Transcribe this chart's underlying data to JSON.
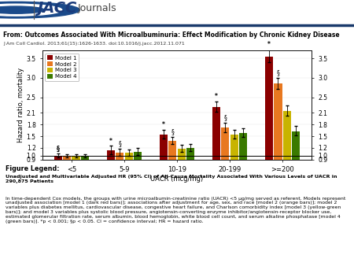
{
  "categories": [
    "<5",
    "5-9",
    "10-19",
    "20-199",
    ">=200"
  ],
  "models": [
    "Model 1",
    "Model 2",
    "Model 3",
    "Model 4"
  ],
  "colors": [
    "#8B0000",
    "#E87820",
    "#C8B400",
    "#3A7A00"
  ],
  "values": [
    [
      1.0,
      1.13,
      1.55,
      2.25,
      3.55
    ],
    [
      1.0,
      1.08,
      1.38,
      1.72,
      2.85
    ],
    [
      1.0,
      1.07,
      1.18,
      1.55,
      2.15
    ],
    [
      1.0,
      1.1,
      1.2,
      1.58,
      1.63
    ]
  ],
  "errors_upper": [
    [
      0.05,
      0.12,
      0.12,
      0.15,
      0.18
    ],
    [
      0.04,
      0.1,
      0.1,
      0.13,
      0.15
    ],
    [
      0.04,
      0.09,
      0.1,
      0.12,
      0.14
    ],
    [
      0.04,
      0.09,
      0.1,
      0.12,
      0.13
    ]
  ],
  "errors_lower": [
    [
      0.05,
      0.1,
      0.1,
      0.13,
      0.15
    ],
    [
      0.04,
      0.08,
      0.09,
      0.11,
      0.13
    ],
    [
      0.04,
      0.08,
      0.09,
      0.1,
      0.12
    ],
    [
      0.04,
      0.08,
      0.09,
      0.1,
      0.11
    ]
  ],
  "ylabel_left": "Hazard ratio, mortality",
  "xlabel": "UACR (mcg/mg)",
  "ylim": [
    0.9,
    3.7
  ],
  "yticks": [
    0.9,
    1.0,
    1.2,
    1.5,
    1.8,
    2.1,
    2.5,
    3.0,
    3.5
  ],
  "reference_line": 1.0,
  "from_text": "From: Outcomes Associated With Microalbuminuria: Effect Modification by Chronic Kidney Disease",
  "citation": "J Am Coll Cardiol. 2013;61(15):1626-1633. doi:10.1016/j.jacc.2012.11.071",
  "figure_legend_title": "Figure Legend:",
  "figure_legend_line1": "Unadjusted and Multivariable Adjusted HR (95% CI) of All-Cause Mortality Associated With Various Levels of UACR in 290,875 Patients",
  "figure_legend_line2": "In time-dependent Cox models, the groups with urine microalbumin-creatinine ratio (UACR) <5 μg/mg served as referent. Models represent unadjusted association [model 1 (dark red bars)]; associations after adjustment for age, sex, and race [model 2 (orange bars)]; model 2 variables plus diabetes mellitus, cardiovascular disease, congestive heart failure, and Charlson comorbidity index [model 3 (yellow-green bars)]; and model 3 variables plus systolic blood pressure, angiotensin-converting enzyme inhibitor/angiotensin-receptor blocker use, estimated glomerular filtration rate, serum albumin, blood hemoglobin, white blood cell count, and serum alkaline phosphatase [model 4 (green bars)]. *p < 0.001; §p < 0.05. CI = confidence interval; HR = hazard ratio.",
  "bar_width": 0.17,
  "sig_above_model1": [
    "§",
    "*",
    "*",
    "*",
    "*"
  ],
  "sig_above_model2": [
    "",
    "§",
    "§",
    "§",
    "§"
  ],
  "header_bg": "#f0f0f0",
  "header_border_color": "#1a3a6b",
  "logo_circle_color": "#1a4a8a",
  "logo_text_jacc": "JACC",
  "logo_text_journals": "Journals",
  "jacc_blue": "#1a3a7a"
}
